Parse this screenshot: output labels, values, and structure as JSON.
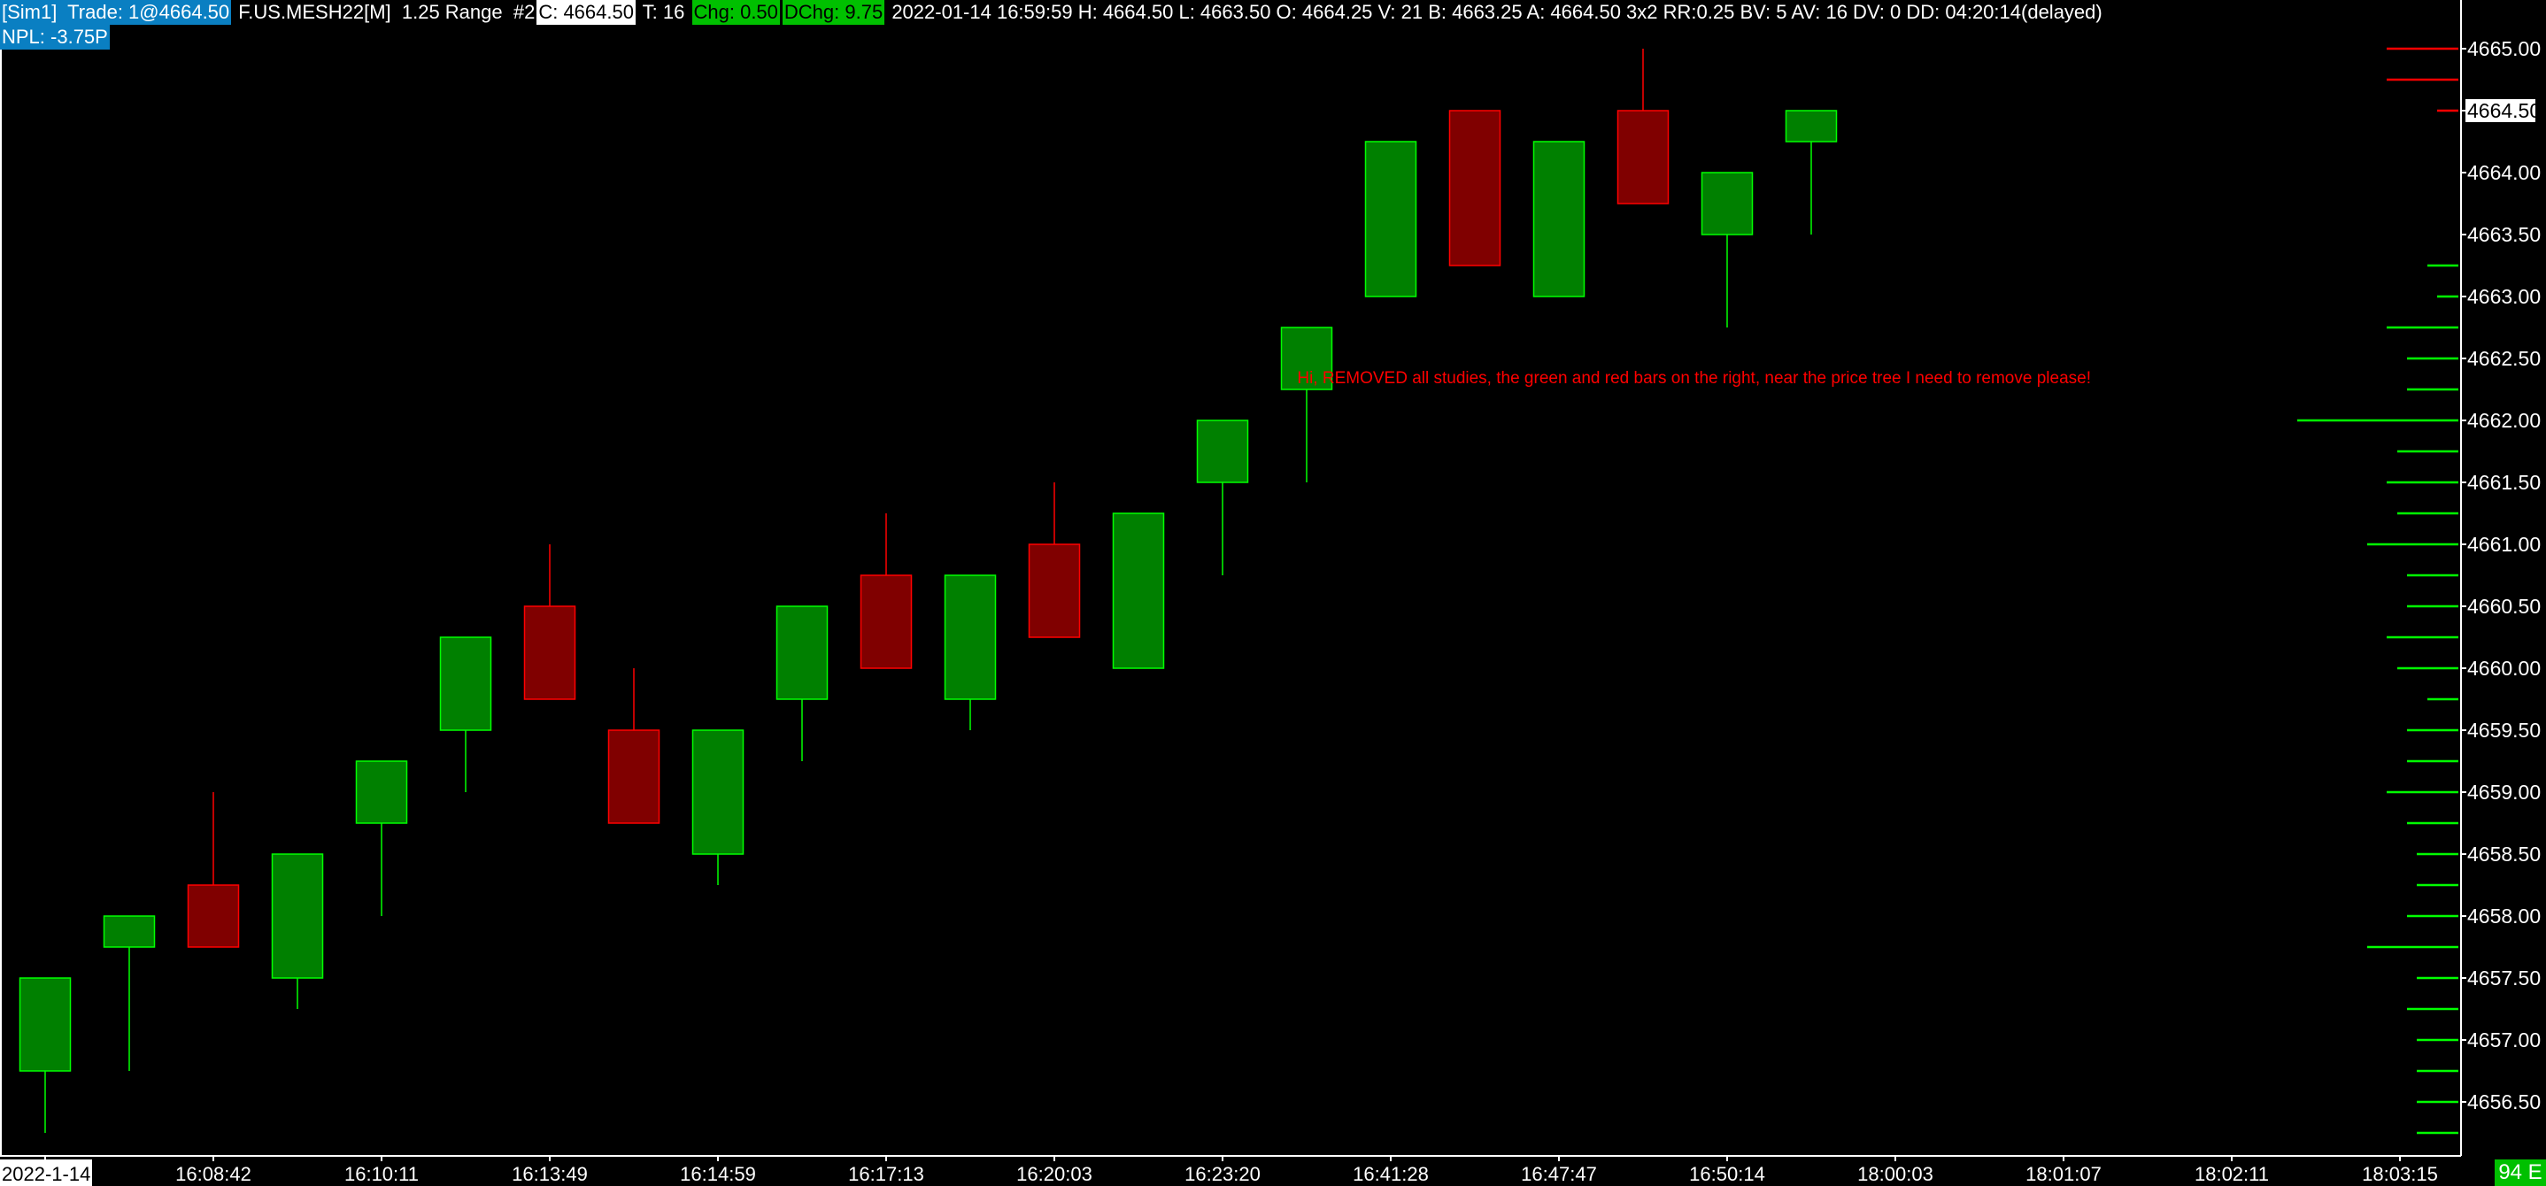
{
  "header": {
    "account_trade": "[Sim1]  Trade: 1@4664.50",
    "symbol_info": " F.US.MESH22[M]  1.25 Range  #2",
    "close": "C: 4664.50",
    "ticks": " T: 16 ",
    "chg": "Chg: 0.50",
    "dchg": "DChg: 9.75",
    "details": " 2022-01-14 16:59:59 H: 4664.50 L: 4663.50 O: 4664.25 V: 21 B: 4663.25 A: 4664.50 3x2 RR:0.25 BV: 5 AV: 16 DV: 0 DD: 04:20:14(delayed)",
    "npl": "NPL: -3.75P"
  },
  "note": "Hi, REMOVED all studies, the green and red bars on the right, near the price tree I need to remove please!",
  "corner_badge": "94 E",
  "colors": {
    "up_fill": "#008000",
    "up_border": "#00ff00",
    "down_fill": "#800000",
    "down_border": "#ff0000",
    "profile_up": "#00ff00",
    "profile_down": "#ff0000",
    "header_blue": "#0a7fc2"
  },
  "chart_data": {
    "type": "candlestick",
    "price_axis": {
      "min": 4656.25,
      "max": 4665.0,
      "tick": 0.25,
      "label_step": 0.5,
      "current_price": "4664.50",
      "labels": [
        "4665.00",
        "4664.50",
        "4664.00",
        "4663.50",
        "4663.00",
        "4662.50",
        "4662.00",
        "4661.50",
        "4661.00",
        "4660.50",
        "4660.00",
        "4659.50",
        "4659.00",
        "4658.50",
        "4658.00",
        "4657.50",
        "4657.00",
        "4656.50"
      ]
    },
    "time_labels": [
      "2022-1-14",
      "16:08:42",
      "16:10:11",
      "16:13:49",
      "16:14:59",
      "16:17:13",
      "16:20:03",
      "16:23:20",
      "16:41:28",
      "16:47:47",
      "16:50:14",
      "18:00:03",
      "18:01:07",
      "18:02:11",
      "18:03:15"
    ],
    "candles": [
      {
        "o": 4656.75,
        "h": 4657.5,
        "l": 4656.25,
        "c": 4657.5
      },
      {
        "o": 4657.75,
        "h": 4658.0,
        "l": 4656.75,
        "c": 4658.0
      },
      {
        "o": 4658.25,
        "h": 4659.0,
        "l": 4657.75,
        "c": 4657.75
      },
      {
        "o": 4657.5,
        "h": 4658.5,
        "l": 4657.25,
        "c": 4658.5
      },
      {
        "o": 4658.75,
        "h": 4659.25,
        "l": 4658.0,
        "c": 4659.25
      },
      {
        "o": 4659.5,
        "h": 4660.25,
        "l": 4659.0,
        "c": 4660.25
      },
      {
        "o": 4660.5,
        "h": 4661.0,
        "l": 4659.75,
        "c": 4659.75
      },
      {
        "o": 4659.5,
        "h": 4660.0,
        "l": 4658.75,
        "c": 4658.75
      },
      {
        "o": 4658.5,
        "h": 4659.5,
        "l": 4658.25,
        "c": 4659.5
      },
      {
        "o": 4659.75,
        "h": 4660.5,
        "l": 4659.25,
        "c": 4660.5
      },
      {
        "o": 4660.75,
        "h": 4661.25,
        "l": 4660.0,
        "c": 4660.0
      },
      {
        "o": 4659.75,
        "h": 4660.75,
        "l": 4659.5,
        "c": 4660.75
      },
      {
        "o": 4661.0,
        "h": 4661.5,
        "l": 4660.25,
        "c": 4660.25
      },
      {
        "o": 4660.0,
        "h": 4661.25,
        "l": 4660.0,
        "c": 4661.25
      },
      {
        "o": 4661.5,
        "h": 4662.0,
        "l": 4660.75,
        "c": 4662.0
      },
      {
        "o": 4662.25,
        "h": 4662.75,
        "l": 4661.5,
        "c": 4662.75
      },
      {
        "o": 4663.0,
        "h": 4664.25,
        "l": 4663.0,
        "c": 4664.25
      },
      {
        "o": 4664.5,
        "h": 4664.5,
        "l": 4663.25,
        "c": 4663.25
      },
      {
        "o": 4663.0,
        "h": 4664.25,
        "l": 4663.0,
        "c": 4664.25
      },
      {
        "o": 4664.5,
        "h": 4665.0,
        "l": 4663.75,
        "c": 4663.75
      },
      {
        "o": 4663.5,
        "h": 4664.0,
        "l": 4662.75,
        "c": 4664.0
      },
      {
        "o": 4664.25,
        "h": 4664.5,
        "l": 4663.5,
        "c": 4664.5
      }
    ],
    "price_profile": [
      {
        "price": 4665.0,
        "size": 81,
        "side": "down"
      },
      {
        "price": 4664.75,
        "size": 81,
        "side": "down"
      },
      {
        "price": 4664.5,
        "size": 24,
        "side": "down"
      },
      {
        "price": 4663.25,
        "size": 35,
        "side": "up"
      },
      {
        "price": 4663.0,
        "size": 24,
        "side": "up"
      },
      {
        "price": 4662.75,
        "size": 81,
        "side": "up"
      },
      {
        "price": 4662.5,
        "size": 58,
        "side": "up"
      },
      {
        "price": 4662.25,
        "size": 58,
        "side": "up"
      },
      {
        "price": 4662.0,
        "size": 182,
        "side": "up"
      },
      {
        "price": 4661.75,
        "size": 69,
        "side": "up"
      },
      {
        "price": 4661.5,
        "size": 81,
        "side": "up"
      },
      {
        "price": 4661.25,
        "size": 69,
        "side": "up"
      },
      {
        "price": 4661.0,
        "size": 103,
        "side": "up"
      },
      {
        "price": 4660.75,
        "size": 58,
        "side": "up"
      },
      {
        "price": 4660.5,
        "size": 58,
        "side": "up"
      },
      {
        "price": 4660.25,
        "size": 81,
        "side": "up"
      },
      {
        "price": 4660.0,
        "size": 69,
        "side": "up"
      },
      {
        "price": 4659.75,
        "size": 35,
        "side": "up"
      },
      {
        "price": 4659.5,
        "size": 58,
        "side": "up"
      },
      {
        "price": 4659.25,
        "size": 58,
        "side": "up"
      },
      {
        "price": 4659.0,
        "size": 81,
        "side": "up"
      },
      {
        "price": 4658.75,
        "size": 58,
        "side": "up"
      },
      {
        "price": 4658.5,
        "size": 47,
        "side": "up"
      },
      {
        "price": 4658.25,
        "size": 47,
        "side": "up"
      },
      {
        "price": 4658.0,
        "size": 58,
        "side": "up"
      },
      {
        "price": 4657.75,
        "size": 103,
        "side": "up"
      },
      {
        "price": 4657.5,
        "size": 47,
        "side": "up"
      },
      {
        "price": 4657.25,
        "size": 58,
        "side": "up"
      },
      {
        "price": 4657.0,
        "size": 47,
        "side": "up"
      },
      {
        "price": 4656.75,
        "size": 47,
        "side": "up"
      },
      {
        "price": 4656.5,
        "size": 47,
        "side": "up"
      },
      {
        "price": 4656.25,
        "size": 47,
        "side": "up"
      }
    ]
  }
}
